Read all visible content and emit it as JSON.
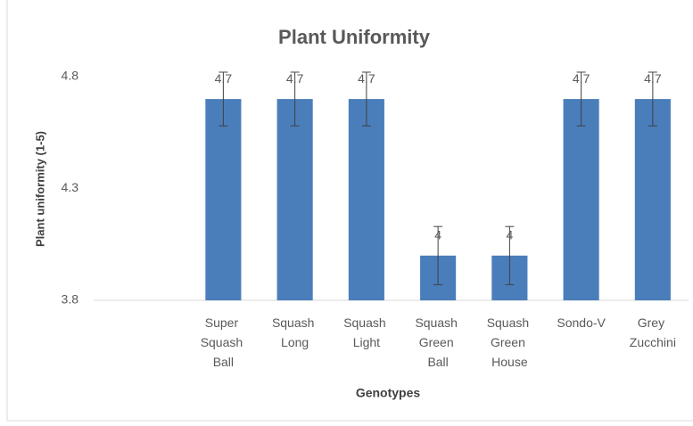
{
  "chart_data": {
    "type": "bar",
    "title": "Plant Uniformity",
    "y_label": "Plant  uniformity (1-5)",
    "x_label": "Genotypes",
    "categories": [
      null,
      "Super Squash Ball",
      "Squash Long",
      "Squash Light",
      "Squash Green Ball",
      "Squash Green House",
      "Sondo-V",
      "Grey Zucchini"
    ],
    "values": [
      null,
      4.7,
      4.7,
      4.7,
      4,
      4,
      4.7,
      4.7
    ],
    "errors": [
      null,
      0.12,
      0.12,
      0.12,
      0.13,
      0.13,
      0.12,
      0.12
    ],
    "color": "#4a7ebb",
    "ylim": [
      3.8,
      4.8
    ],
    "yticks": [
      3.8,
      4.3,
      4.8
    ],
    "grid": false
  }
}
